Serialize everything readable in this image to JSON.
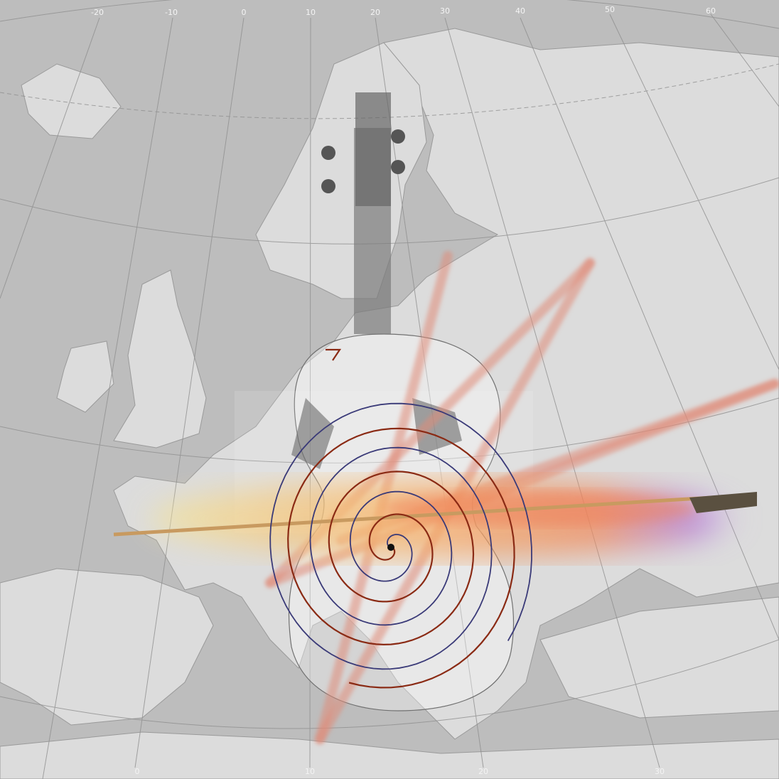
{
  "graticule": {
    "top_labels": [
      "-20",
      "-10",
      "0",
      "10",
      "20",
      "30",
      "40",
      "50",
      "60"
    ],
    "bottom_labels": [
      "0",
      "10",
      "20",
      "30"
    ]
  }
}
